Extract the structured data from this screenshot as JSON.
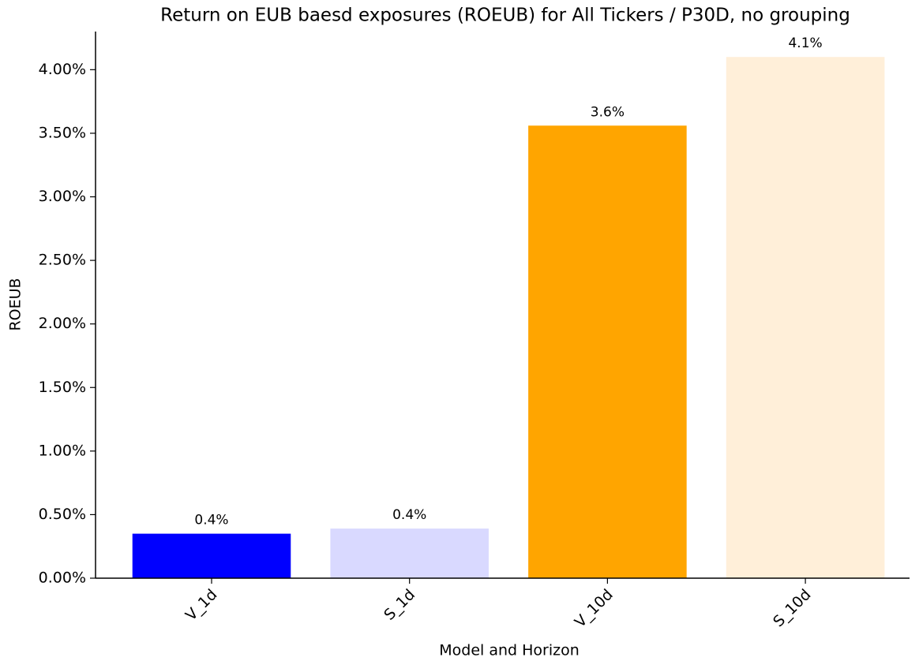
{
  "chart_data": {
    "type": "bar",
    "title": "Return on EUB baesd exposures (ROEUB) for All Tickers / P30D, no grouping",
    "x_label": "Model and Horizon",
    "y_label": "ROEUB",
    "categories": [
      "V_1d",
      "S_1d",
      "V_10d",
      "S_10d"
    ],
    "values": [
      0.35,
      0.39,
      3.56,
      4.1
    ],
    "value_labels": [
      "0.4%",
      "0.4%",
      "3.6%",
      "4.1%"
    ],
    "colors": [
      "#0000ff",
      "#d9d9ff",
      "#ffa500",
      "#ffefd9"
    ],
    "ylim": [
      0,
      4.3
    ],
    "yticks": [
      {
        "value": 0,
        "label": "0.00%"
      },
      {
        "value": 0.5,
        "label": "0.50%"
      },
      {
        "value": 1,
        "label": "1.00%"
      },
      {
        "value": 1.5,
        "label": "1.50%"
      },
      {
        "value": 2,
        "label": "2.00%"
      },
      {
        "value": 2.5,
        "label": "2.50%"
      },
      {
        "value": 3,
        "label": "3.00%"
      },
      {
        "value": 3.5,
        "label": "3.50%"
      },
      {
        "value": 4,
        "label": "4.00%"
      }
    ],
    "grid": false
  }
}
